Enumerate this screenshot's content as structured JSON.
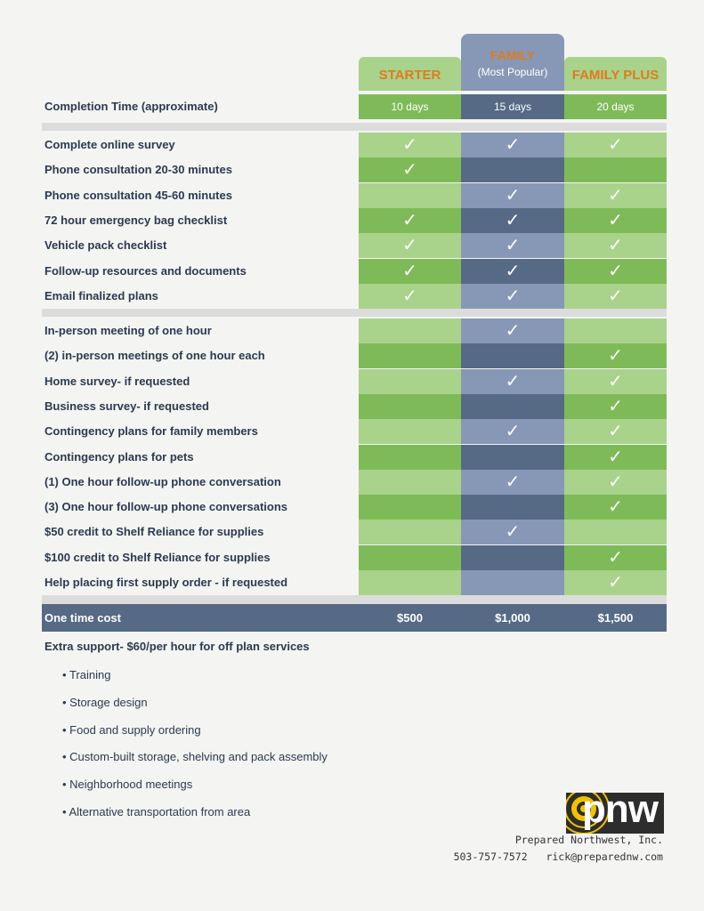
{
  "plans": {
    "starter": {
      "name": "STARTER"
    },
    "family": {
      "name": "FAMILY",
      "subtitle": "(Most Popular)"
    },
    "family_plus": {
      "name": "FAMILY PLUS"
    }
  },
  "completion": {
    "label": "Completion Time  (approximate)",
    "values": [
      "10 days",
      "15 days",
      "20 days"
    ]
  },
  "check_symbol": "✓",
  "section1": [
    {
      "label": "Complete online survey",
      "checks": [
        true,
        true,
        true
      ]
    },
    {
      "label": "Phone consultation 20-30 minutes",
      "checks": [
        true,
        false,
        false
      ]
    },
    {
      "label": "Phone consultation 45-60 minutes",
      "checks": [
        false,
        true,
        true
      ]
    },
    {
      "label": "72 hour emergency bag checklist",
      "checks": [
        true,
        true,
        true
      ]
    },
    {
      "label": "Vehicle pack checklist",
      "checks": [
        true,
        true,
        true
      ]
    },
    {
      "label": "Follow-up resources and documents",
      "checks": [
        true,
        true,
        true
      ]
    },
    {
      "label": "Email finalized plans",
      "checks": [
        true,
        true,
        true
      ]
    }
  ],
  "section2": [
    {
      "label": "In-person meeting of one hour",
      "checks": [
        false,
        true,
        false
      ]
    },
    {
      "label": "(2) in-person meetings of one hour each",
      "checks": [
        false,
        false,
        true
      ]
    },
    {
      "label": "Home survey- if requested",
      "checks": [
        false,
        true,
        true
      ]
    },
    {
      "label": "Business survey- if requested",
      "checks": [
        false,
        false,
        true
      ]
    },
    {
      "label": "Contingency plans for family members",
      "checks": [
        false,
        true,
        true
      ]
    },
    {
      "label": "Contingency plans for pets",
      "checks": [
        false,
        false,
        true
      ]
    },
    {
      "label": "(1) One hour follow-up phone conversation",
      "checks": [
        false,
        true,
        true
      ]
    },
    {
      "label": "(3) One hour follow-up phone conversations",
      "checks": [
        false,
        false,
        true
      ]
    },
    {
      "label": "$50 credit to Shelf Reliance for supplies",
      "checks": [
        false,
        true,
        false
      ]
    },
    {
      "label": "$100 credit to Shelf Reliance for supplies",
      "checks": [
        false,
        false,
        true
      ]
    },
    {
      "label": "Help placing first supply order - if requested",
      "checks": [
        false,
        false,
        true
      ]
    }
  ],
  "cost": {
    "label": "One time cost",
    "values": [
      "$500",
      "$1,000",
      "$1,500"
    ]
  },
  "extra": {
    "heading": "Extra support- $60/per hour for off plan services",
    "items": [
      "Training",
      "Storage design",
      "Food and supply ordering",
      "Custom-built storage, shelving and pack assembly",
      "Neighborhood meetings",
      "Alternative transportation from area"
    ]
  },
  "footer": {
    "logo_text": "pnw",
    "company": "Prepared Northwest, Inc.",
    "phone": "503-757-7572",
    "email": "rick@preparednw.com"
  },
  "colors": {
    "green_light": "#a9d28b",
    "green_dark": "#7ebb58",
    "blue_light": "#8798b6",
    "blue_dark": "#566a86",
    "accent_orange": "#e07b1e",
    "logo_yellow": "#f2c200"
  }
}
